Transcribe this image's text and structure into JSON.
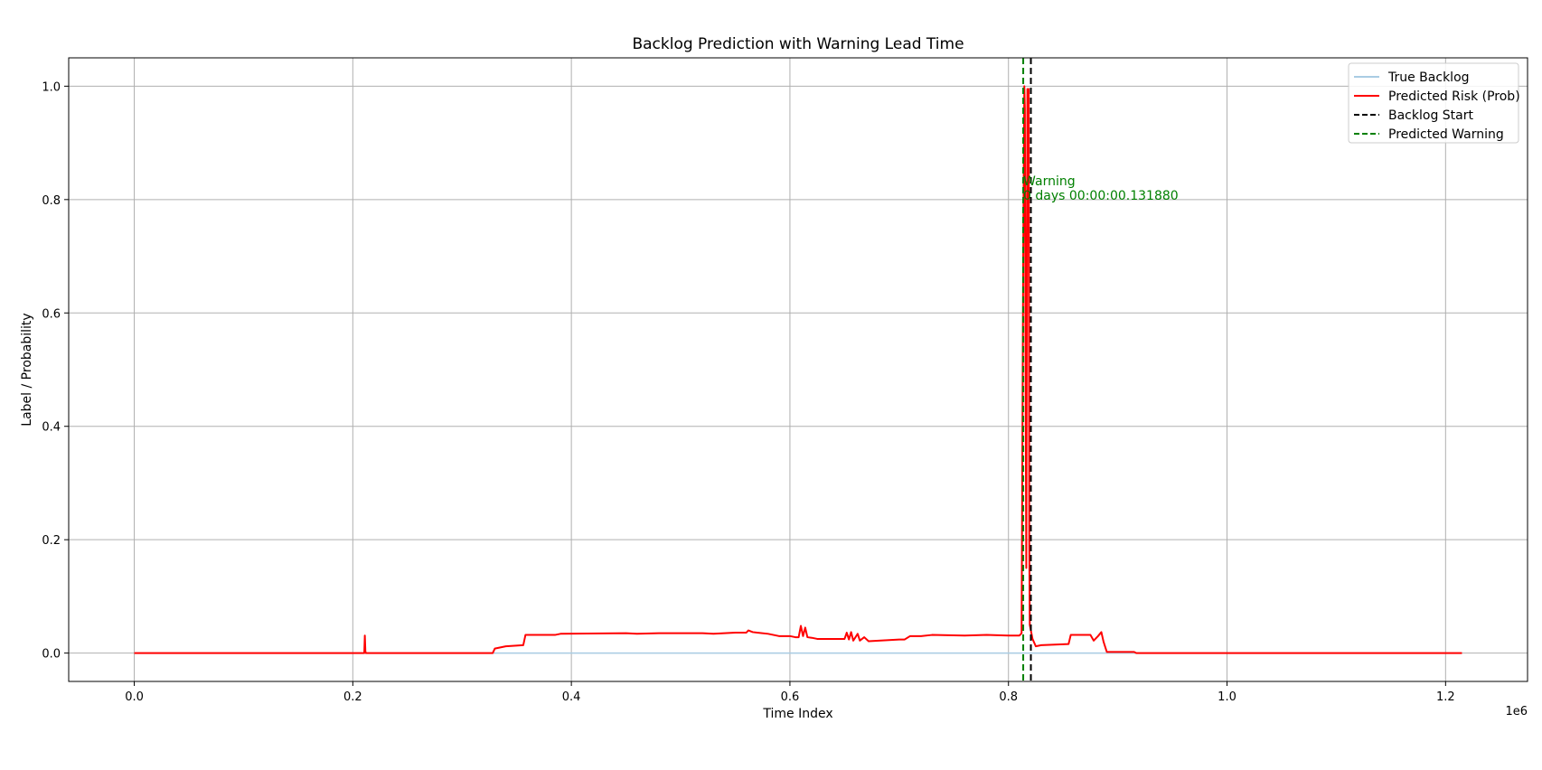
{
  "chart_data": {
    "type": "line",
    "title": "Backlog Prediction with Warning Lead Time",
    "xlabel": "Time Index",
    "ylabel": "Label / Probability",
    "x_offset_label": "1e6",
    "xlim": [
      -0.06,
      1.275
    ],
    "ylim": [
      -0.05,
      1.05
    ],
    "x_ticks": [
      0.0,
      0.2,
      0.4,
      0.6,
      0.8,
      1.0,
      1.2
    ],
    "x_tick_labels": [
      "0.0",
      "0.2",
      "0.4",
      "0.6",
      "0.8",
      "1.0",
      "1.2"
    ],
    "y_ticks": [
      0.0,
      0.2,
      0.4,
      0.6,
      0.8,
      1.0
    ],
    "y_tick_labels": [
      "0.0",
      "0.2",
      "0.4",
      "0.6",
      "0.8",
      "1.0"
    ],
    "grid": true,
    "legend_position": "top-right",
    "series": [
      {
        "name": "True Backlog",
        "color": "#a9cce3",
        "style": "solid",
        "points": [
          [
            0.0,
            0.0
          ],
          [
            1.215,
            0.0
          ]
        ]
      },
      {
        "name": "Predicted Risk (Prob)",
        "color": "#ff0000",
        "style": "solid",
        "points": [
          [
            0.0,
            0.0
          ],
          [
            0.2105,
            0.0
          ],
          [
            0.211,
            0.031
          ],
          [
            0.2115,
            0.003
          ],
          [
            0.212,
            0.0
          ],
          [
            0.328,
            0.0
          ],
          [
            0.33,
            0.008
          ],
          [
            0.34,
            0.012
          ],
          [
            0.356,
            0.014
          ],
          [
            0.358,
            0.032
          ],
          [
            0.385,
            0.032
          ],
          [
            0.39,
            0.034
          ],
          [
            0.45,
            0.035
          ],
          [
            0.46,
            0.034
          ],
          [
            0.48,
            0.035
          ],
          [
            0.52,
            0.035
          ],
          [
            0.53,
            0.034
          ],
          [
            0.55,
            0.036
          ],
          [
            0.56,
            0.036
          ],
          [
            0.562,
            0.04
          ],
          [
            0.566,
            0.037
          ],
          [
            0.57,
            0.036
          ],
          [
            0.58,
            0.034
          ],
          [
            0.59,
            0.03
          ],
          [
            0.6,
            0.03
          ],
          [
            0.605,
            0.028
          ],
          [
            0.608,
            0.028
          ],
          [
            0.61,
            0.048
          ],
          [
            0.612,
            0.03
          ],
          [
            0.614,
            0.045
          ],
          [
            0.616,
            0.028
          ],
          [
            0.62,
            0.027
          ],
          [
            0.625,
            0.025
          ],
          [
            0.65,
            0.025
          ],
          [
            0.652,
            0.036
          ],
          [
            0.654,
            0.024
          ],
          [
            0.656,
            0.037
          ],
          [
            0.658,
            0.022
          ],
          [
            0.662,
            0.034
          ],
          [
            0.664,
            0.022
          ],
          [
            0.668,
            0.028
          ],
          [
            0.672,
            0.021
          ],
          [
            0.7,
            0.024
          ],
          [
            0.705,
            0.024
          ],
          [
            0.71,
            0.03
          ],
          [
            0.72,
            0.03
          ],
          [
            0.73,
            0.032
          ],
          [
            0.76,
            0.031
          ],
          [
            0.78,
            0.032
          ],
          [
            0.8,
            0.031
          ],
          [
            0.81,
            0.031
          ],
          [
            0.812,
            0.035
          ],
          [
            0.8135,
            0.7
          ],
          [
            0.8145,
            1.0
          ],
          [
            0.815,
            0.96
          ],
          [
            0.8158,
            0.4
          ],
          [
            0.8163,
            0.15
          ],
          [
            0.8168,
            0.6
          ],
          [
            0.8173,
            0.995
          ],
          [
            0.8178,
            0.98
          ],
          [
            0.8185,
            0.995
          ],
          [
            0.819,
            0.2
          ],
          [
            0.8195,
            0.05
          ],
          [
            0.82,
            0.045
          ],
          [
            0.822,
            0.025
          ],
          [
            0.825,
            0.012
          ],
          [
            0.83,
            0.014
          ],
          [
            0.855,
            0.016
          ],
          [
            0.857,
            0.032
          ],
          [
            0.875,
            0.032
          ],
          [
            0.878,
            0.022
          ],
          [
            0.882,
            0.03
          ],
          [
            0.885,
            0.037
          ],
          [
            0.887,
            0.02
          ],
          [
            0.89,
            0.002
          ],
          [
            0.9,
            0.002
          ],
          [
            0.915,
            0.002
          ],
          [
            0.917,
            0.0
          ],
          [
            1.215,
            0.0
          ]
        ]
      }
    ],
    "vlines": [
      {
        "name": "Backlog Start",
        "x": 0.8205,
        "color": "#000000",
        "style": "dashed"
      },
      {
        "name": "Predicted Warning",
        "x": 0.8135,
        "color": "#008000",
        "style": "dashed"
      }
    ],
    "annotation": {
      "lines": [
        "Warning",
        "0 days 00:00:00.131880"
      ],
      "x": 0.8135,
      "y": 0.8,
      "color": "#008000"
    },
    "legend_entries": [
      {
        "label": "True Backlog",
        "color": "#a9cce3",
        "style": "solid"
      },
      {
        "label": "Predicted Risk (Prob)",
        "color": "#ff0000",
        "style": "solid"
      },
      {
        "label": "Backlog Start",
        "color": "#000000",
        "style": "dashed"
      },
      {
        "label": "Predicted Warning",
        "color": "#008000",
        "style": "dashed"
      }
    ]
  }
}
